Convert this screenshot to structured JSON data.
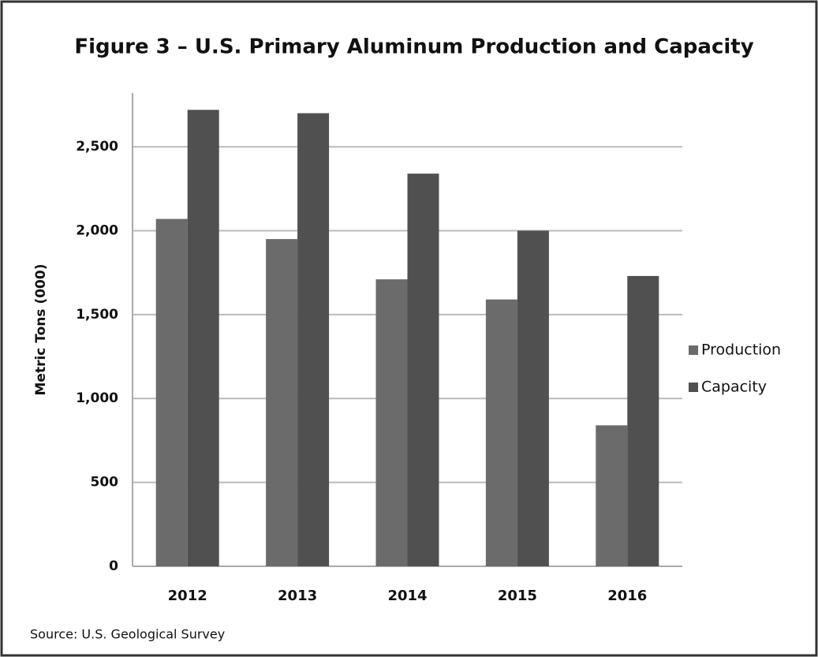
{
  "chart_data": {
    "type": "bar",
    "title": "Figure 3 – U.S. Primary Aluminum Production and Capacity",
    "y_label": "Metric Tons (000)",
    "source": "Source: U.S. Geological Survey",
    "categories": [
      "2012",
      "2013",
      "2014",
      "2015",
      "2016"
    ],
    "series": [
      {
        "name": "Production",
        "color": "#6b6b6b",
        "values": [
          2070,
          1950,
          1710,
          1590,
          840
        ]
      },
      {
        "name": "Capacity",
        "color": "#505050",
        "values": [
          2720,
          2700,
          2340,
          2000,
          1730
        ]
      }
    ],
    "ylim": [
      0,
      2820
    ],
    "yticks": [
      0,
      500,
      {
        "value": 1000,
        "label": "1,000"
      },
      {
        "value": 1500,
        "label": "1,500"
      },
      {
        "value": 2000,
        "label": "2,000"
      },
      {
        "value": 2500,
        "label": "2,500"
      }
    ],
    "grid": true,
    "legend": "right"
  }
}
